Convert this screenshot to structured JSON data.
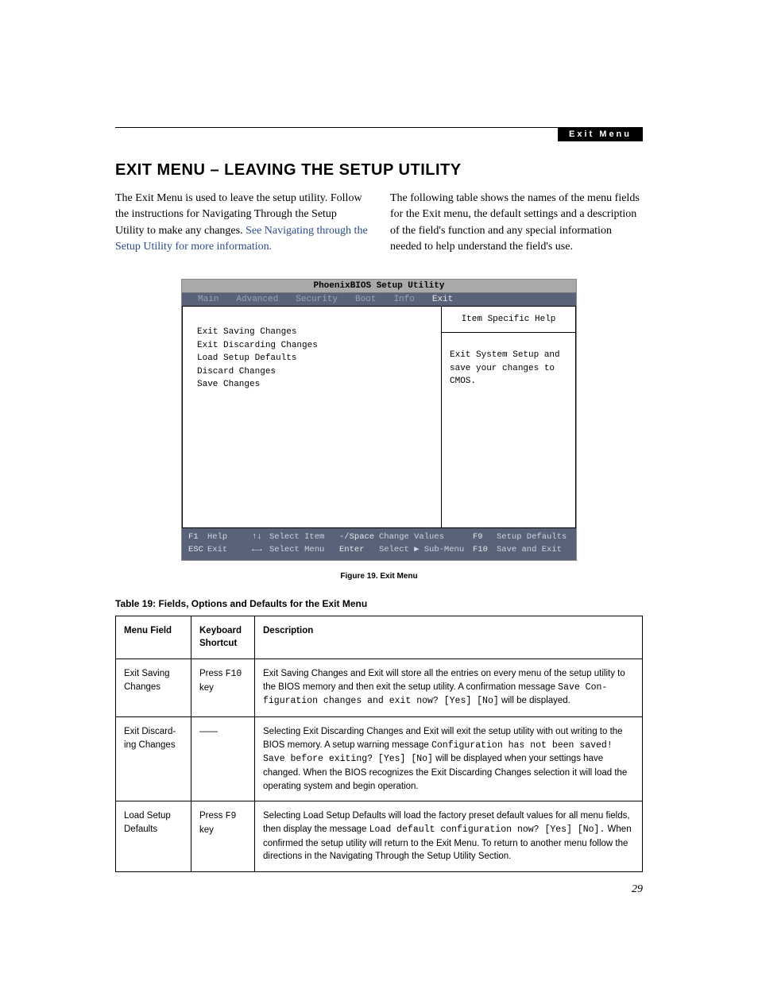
{
  "header": {
    "section_label": "Exit Menu"
  },
  "title": "EXIT MENU – LEAVING THE SETUP UTILITY",
  "intro": {
    "left_plain": "The Exit Menu is used to leave the setup utility. Follow the instructions for Navigating Through the Setup Utility to make any changes. ",
    "left_link": "See Navigating through the Setup Utility for more information.",
    "right": "The following table shows the names of the menu fields for the Exit menu, the default settings and a description of the field's function and any special information needed to help understand the field's use."
  },
  "bios": {
    "title": "PhoenixBIOS Setup Utility",
    "tabs": [
      "Main",
      "Advanced",
      "Security",
      "Boot",
      "Info",
      "Exit"
    ],
    "active_tab_index": 5,
    "items": [
      "Exit Saving Changes",
      "Exit Discarding Changes",
      "Load Setup Defaults",
      "Discard Changes",
      "Save Changes"
    ],
    "help_title": "Item Specific Help",
    "help_body": "Exit System Setup and save your changes to CMOS.",
    "footer": {
      "row1": [
        {
          "k": "F1",
          "t": "Help"
        },
        {
          "k": "↑↓",
          "t": "Select Item"
        },
        {
          "k": "-/Space",
          "t": "Change Values"
        },
        {
          "k": "F9",
          "t": "Setup Defaults"
        }
      ],
      "row2": [
        {
          "k": "ESC",
          "t": "Exit"
        },
        {
          "k": "←→",
          "t": "Select Menu"
        },
        {
          "k": "Enter",
          "t": "Select ▶ Sub-Menu"
        },
        {
          "k": "F10",
          "t": "Save and Exit"
        }
      ]
    }
  },
  "figure_caption": "Figure 19.  Exit Menu",
  "table_caption": "Table 19: Fields, Options and Defaults for the Exit Menu",
  "table": {
    "headers": [
      "Menu Field",
      "Keyboard Shortcut",
      "Description"
    ],
    "rows": [
      {
        "field": "Exit Saving Changes",
        "shortcut_pre": "Press ",
        "shortcut_mono": "F10",
        "shortcut_post": " key",
        "desc_parts": [
          {
            "t": "Exit Saving Changes and Exit will store all the entries on every menu of the setup utility to the BIOS memory and then exit the setup utility. A confirmation message "
          },
          {
            "mono": "Save Con-figuration changes and exit now? [Yes] [No]"
          },
          {
            "t": " will be displayed."
          }
        ]
      },
      {
        "field": "Exit Discard-ing Changes",
        "shortcut_dash": "——",
        "desc_parts": [
          {
            "t": "Selecting Exit Discarding Changes and Exit will exit the setup utility with out writing to the BIOS memory. A setup warning message "
          },
          {
            "mono": "Configuration has not been saved! Save before exiting? [Yes] [No]"
          },
          {
            "t": " will be displayed when your settings have changed. When the BIOS recognizes the Exit Discarding Changes selection it will load the operating system and begin operation."
          }
        ]
      },
      {
        "field": "Load Setup Defaults",
        "shortcut_pre": "Press ",
        "shortcut_mono": "F9",
        "shortcut_post": " key",
        "desc_parts": [
          {
            "t": "Selecting Load Setup Defaults will load the factory preset default values for all menu fields, then display the message "
          },
          {
            "mono": "Load default configuration now? [Yes] [No]."
          },
          {
            "t": " When confirmed the setup utility will return to the Exit Menu. To return to another menu follow the directions in the Navigating Through the Setup Utility Section."
          }
        ]
      }
    ]
  },
  "page_number": "29"
}
